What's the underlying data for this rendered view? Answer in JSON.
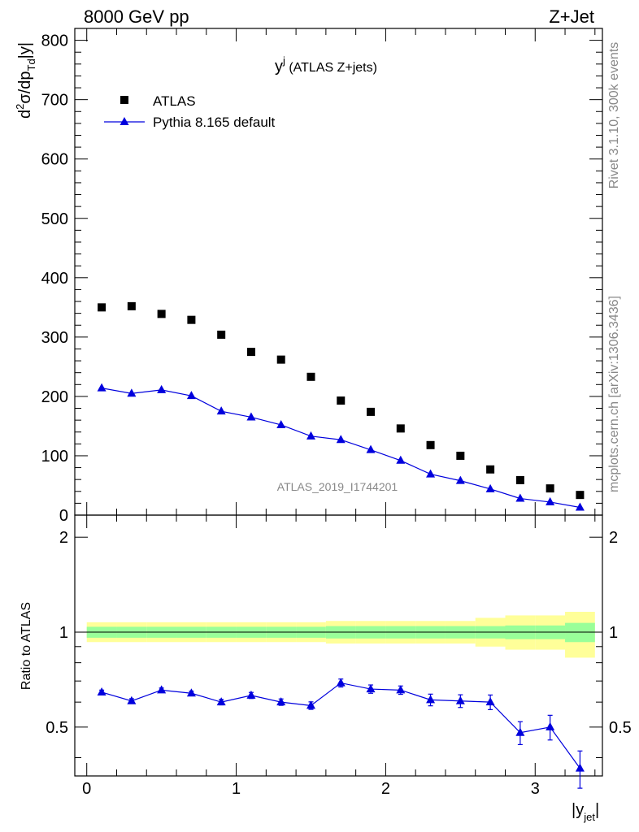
{
  "header": {
    "left": "8000 GeV pp",
    "right": "Z+Jet"
  },
  "plot_title": {
    "main": "y",
    "sup": "j",
    "sub": " (ATLAS Z+jets)"
  },
  "side_text": {
    "rivet": "Rivet 3.1.10,  300k events",
    "mcplots": "mcplots.cern.ch [arXiv:1306.3436]"
  },
  "watermark": "ATLAS_2019_I1744201",
  "legend": {
    "atlas": "ATLAS",
    "pythia": "Pythia 8.165 default"
  },
  "colors": {
    "data": "#000000",
    "mc": "#0000dd",
    "band_inner": "#99ff99",
    "band_outer": "#ffff99"
  },
  "axes": {
    "top_ylabel": {
      "d": "d",
      "two": "2",
      "sig": "σ/dp",
      "td": "Td",
      "y": "|y|"
    },
    "bottom_ylabel": "Ratio to ATLAS",
    "xlabel": {
      "main": "|y",
      "sub": "jet",
      "end": "|"
    },
    "top_yticks": [
      "0",
      "100",
      "200",
      "300",
      "400",
      "500",
      "600",
      "700",
      "800"
    ],
    "bottom_yticks": [
      "0.5",
      "1",
      "2"
    ],
    "xticks": [
      "0",
      "1",
      "2",
      "3"
    ]
  },
  "chart_data": [
    {
      "type": "scatter",
      "title": "y^j (ATLAS Z+jets)",
      "xlabel": "|y_jet|",
      "ylabel": "d2σ/dp_Td|y|",
      "xlim": [
        -0.08,
        3.45
      ],
      "ylim": [
        0,
        820
      ],
      "series": [
        {
          "name": "ATLAS",
          "x": [
            0.1,
            0.3,
            0.5,
            0.7,
            0.9,
            1.1,
            1.3,
            1.5,
            1.7,
            1.9,
            2.1,
            2.3,
            2.5,
            2.7,
            2.9,
            3.1,
            3.3
          ],
          "values": [
            350,
            352,
            339,
            329,
            304,
            275,
            262,
            233,
            193,
            174,
            146,
            118,
            100,
            77,
            59,
            45,
            34
          ]
        },
        {
          "name": "Pythia 8.165 default",
          "x": [
            0.1,
            0.3,
            0.5,
            0.7,
            0.9,
            1.1,
            1.3,
            1.5,
            1.7,
            1.9,
            2.1,
            2.3,
            2.5,
            2.7,
            2.9,
            3.1,
            3.3
          ],
          "values": [
            214,
            205,
            211,
            201,
            175,
            165,
            152,
            133,
            127,
            110,
            92,
            69,
            58,
            44,
            28,
            22,
            13
          ]
        }
      ]
    },
    {
      "type": "line",
      "title": "Ratio to ATLAS",
      "xlabel": "|y_jet|",
      "ylabel": "Ratio to ATLAS",
      "xlim": [
        -0.08,
        3.45
      ],
      "ylim": [
        0.35,
        2.35
      ],
      "scale": "log",
      "bin_edges": [
        0.0,
        0.2,
        0.4,
        0.6,
        0.8,
        1.0,
        1.2,
        1.4,
        1.6,
        1.8,
        2.0,
        2.2,
        2.4,
        2.6,
        2.8,
        3.0,
        3.2,
        3.4
      ],
      "band_inner": [
        [
          0.96,
          1.04
        ],
        [
          0.96,
          1.04
        ],
        [
          0.96,
          1.04
        ],
        [
          0.96,
          1.04
        ],
        [
          0.96,
          1.04
        ],
        [
          0.96,
          1.04
        ],
        [
          0.96,
          1.04
        ],
        [
          0.96,
          1.04
        ],
        [
          0.955,
          1.045
        ],
        [
          0.955,
          1.045
        ],
        [
          0.955,
          1.045
        ],
        [
          0.955,
          1.045
        ],
        [
          0.955,
          1.045
        ],
        [
          0.955,
          1.045
        ],
        [
          0.95,
          1.05
        ],
        [
          0.95,
          1.05
        ],
        [
          0.93,
          1.07
        ]
      ],
      "band_outer": [
        [
          0.93,
          1.075
        ],
        [
          0.93,
          1.075
        ],
        [
          0.93,
          1.075
        ],
        [
          0.93,
          1.075
        ],
        [
          0.93,
          1.075
        ],
        [
          0.93,
          1.075
        ],
        [
          0.93,
          1.075
        ],
        [
          0.93,
          1.075
        ],
        [
          0.92,
          1.085
        ],
        [
          0.92,
          1.085
        ],
        [
          0.92,
          1.085
        ],
        [
          0.92,
          1.085
        ],
        [
          0.92,
          1.085
        ],
        [
          0.9,
          1.11
        ],
        [
          0.88,
          1.13
        ],
        [
          0.88,
          1.13
        ],
        [
          0.83,
          1.16
        ]
      ],
      "series": [
        {
          "name": "Pythia 8.165 default / ATLAS",
          "x": [
            0.1,
            0.3,
            0.5,
            0.7,
            0.9,
            1.1,
            1.3,
            1.5,
            1.7,
            1.9,
            2.1,
            2.3,
            2.5,
            2.7,
            2.9,
            3.1,
            3.3
          ],
          "values": [
            0.645,
            0.605,
            0.655,
            0.64,
            0.6,
            0.63,
            0.6,
            0.585,
            0.69,
            0.66,
            0.655,
            0.61,
            0.605,
            0.6,
            0.48,
            0.5,
            0.37
          ],
          "errors": [
            0.01,
            0.01,
            0.01,
            0.01,
            0.012,
            0.014,
            0.014,
            0.016,
            0.02,
            0.02,
            0.02,
            0.026,
            0.028,
            0.032,
            0.04,
            0.045,
            0.05
          ]
        }
      ]
    }
  ]
}
